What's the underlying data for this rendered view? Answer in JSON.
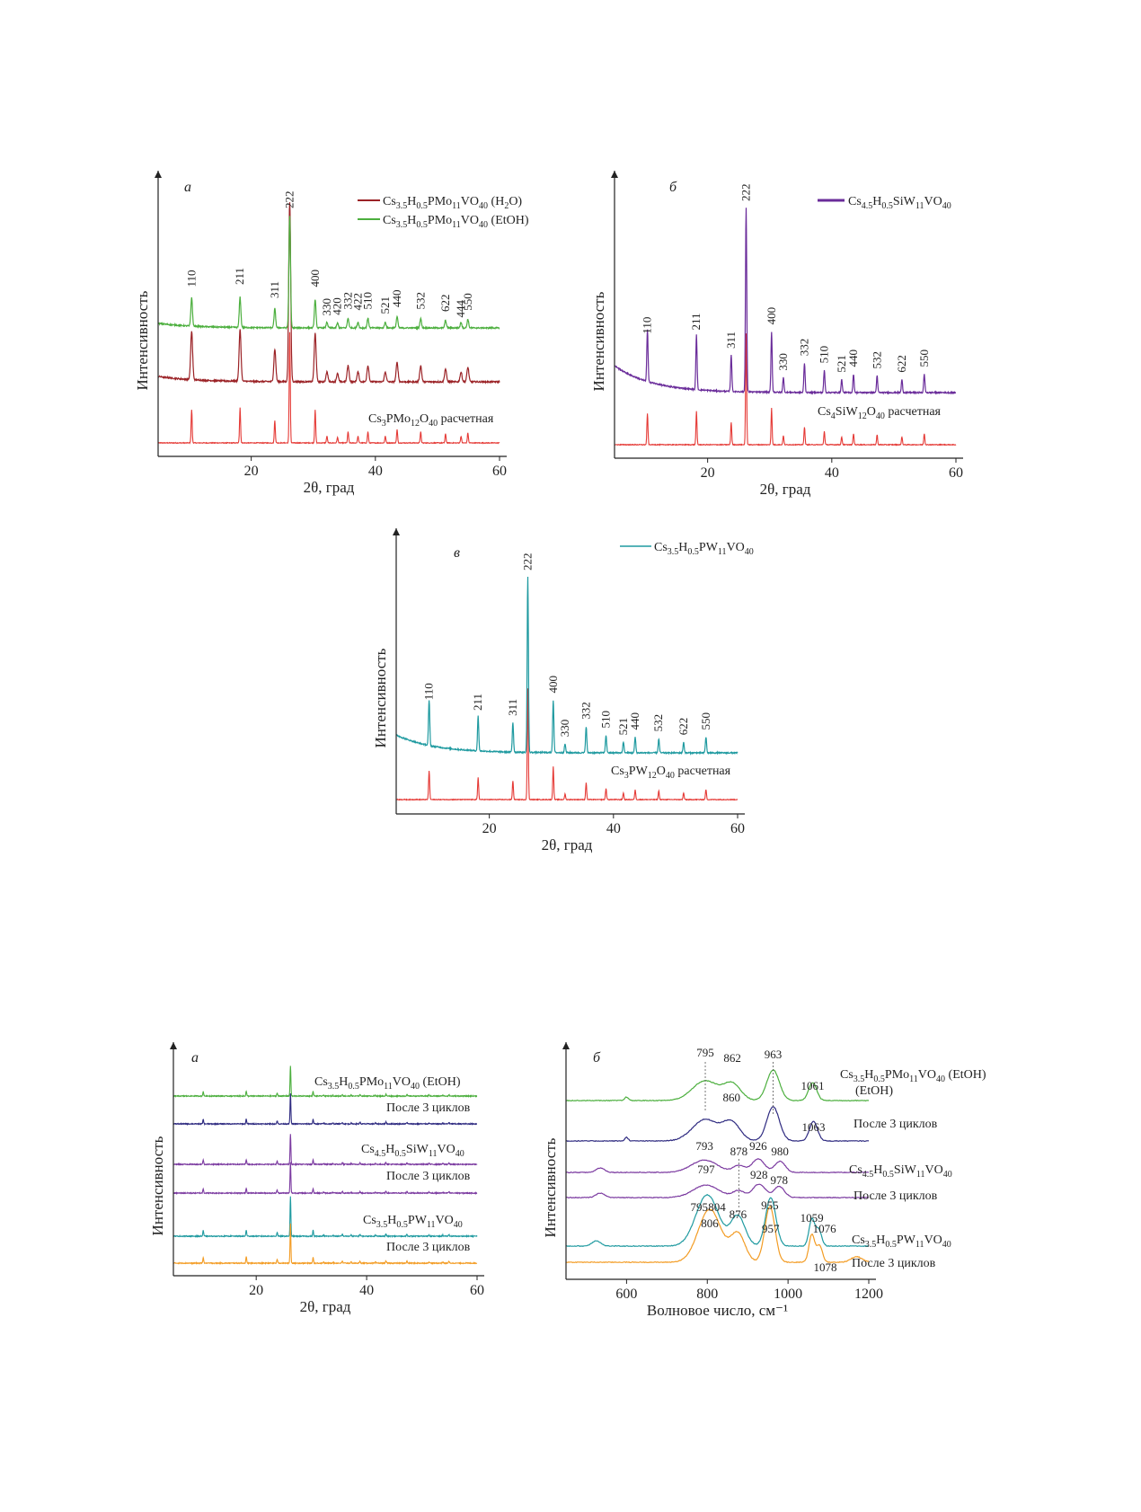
{
  "colors": {
    "green": "#4caf3e",
    "darkred": "#9b2226",
    "red": "#e53935",
    "purple": "#6a2c9a",
    "teal": "#1f9aa0",
    "navy": "#2e2a80",
    "violet": "#7b3aa0",
    "orange": "#f39c24",
    "axis": "#222222"
  },
  "chart_data": [
    {
      "id": "a_top",
      "type": "line",
      "panel_letter": "а",
      "ylabel": "Интенсивность",
      "xlabel": "2θ, град",
      "xlim": [
        5,
        60
      ],
      "xticks": [
        20,
        40,
        60
      ],
      "series": [
        {
          "name": "Cs3.5H0.5PMo11VO40 (H2O)",
          "color": "darkred"
        },
        {
          "name": "Cs3.5H0.5PMo11VO40 (EtOH)",
          "color": "green"
        }
      ],
      "reference": {
        "name": "Cs3PMo12O40 расчетная",
        "color": "red"
      },
      "peaks": [
        {
          "hkl": "110",
          "x": 10.4,
          "h": 0.3
        },
        {
          "hkl": "211",
          "x": 18.2,
          "h": 0.32
        },
        {
          "hkl": "311",
          "x": 23.8,
          "h": 0.2
        },
        {
          "hkl": "222",
          "x": 26.2,
          "h": 1.0
        },
        {
          "hkl": "400",
          "x": 30.3,
          "h": 0.3
        },
        {
          "hkl": "330",
          "x": 32.2,
          "h": 0.06
        },
        {
          "hkl": "420",
          "x": 33.9,
          "h": 0.05
        },
        {
          "hkl": "332",
          "x": 35.6,
          "h": 0.1
        },
        {
          "hkl": "422",
          "x": 37.2,
          "h": 0.06
        },
        {
          "hkl": "510",
          "x": 38.8,
          "h": 0.1
        },
        {
          "hkl": "521",
          "x": 41.6,
          "h": 0.06
        },
        {
          "hkl": "440",
          "x": 43.5,
          "h": 0.12
        },
        {
          "hkl": "532",
          "x": 47.3,
          "h": 0.1
        },
        {
          "hkl": "622",
          "x": 51.3,
          "h": 0.08
        },
        {
          "hkl": "444",
          "x": 53.8,
          "h": 0.06
        },
        {
          "hkl": "550",
          "x": 54.9,
          "h": 0.09
        }
      ]
    },
    {
      "id": "b_top",
      "type": "line",
      "panel_letter": "б",
      "ylabel": "Интенсивность",
      "xlabel": "2θ, град",
      "xlim": [
        5,
        60
      ],
      "xticks": [
        20,
        40,
        60
      ],
      "series": [
        {
          "name": "Cs4.5H0.5SiW11VO40",
          "color": "purple"
        }
      ],
      "reference": {
        "name": "Cs4SiW12O40 расчетная",
        "color": "red"
      },
      "peaks": [
        {
          "hkl": "110",
          "x": 10.3,
          "h": 0.28
        },
        {
          "hkl": "211",
          "x": 18.2,
          "h": 0.3
        },
        {
          "hkl": "311",
          "x": 23.8,
          "h": 0.2
        },
        {
          "hkl": "222",
          "x": 26.2,
          "h": 1.0
        },
        {
          "hkl": "400",
          "x": 30.3,
          "h": 0.33
        },
        {
          "hkl": "330",
          "x": 32.2,
          "h": 0.08
        },
        {
          "hkl": "332",
          "x": 35.6,
          "h": 0.16
        },
        {
          "hkl": "510",
          "x": 38.8,
          "h": 0.12
        },
        {
          "hkl": "521",
          "x": 41.6,
          "h": 0.07
        },
        {
          "hkl": "440",
          "x": 43.5,
          "h": 0.1
        },
        {
          "hkl": "532",
          "x": 47.3,
          "h": 0.09
        },
        {
          "hkl": "622",
          "x": 51.3,
          "h": 0.07
        },
        {
          "hkl": "550",
          "x": 54.9,
          "h": 0.1
        }
      ]
    },
    {
      "id": "v_top",
      "type": "line",
      "panel_letter": "в",
      "ylabel": "Интенсивность",
      "xlabel": "2θ, град",
      "xlim": [
        5,
        60
      ],
      "xticks": [
        20,
        40,
        60
      ],
      "series": [
        {
          "name": "Cs3.5H0.5PW11VO40",
          "color": "teal"
        }
      ],
      "reference": {
        "name": "Cs3PW12O40 расчетная",
        "color": "red"
      },
      "peaks": [
        {
          "hkl": "110",
          "x": 10.3,
          "h": 0.26
        },
        {
          "hkl": "211",
          "x": 18.2,
          "h": 0.2
        },
        {
          "hkl": "311",
          "x": 23.8,
          "h": 0.17
        },
        {
          "hkl": "222",
          "x": 26.2,
          "h": 1.0
        },
        {
          "hkl": "400",
          "x": 30.3,
          "h": 0.3
        },
        {
          "hkl": "330",
          "x": 32.2,
          "h": 0.05
        },
        {
          "hkl": "332",
          "x": 35.6,
          "h": 0.15
        },
        {
          "hkl": "510",
          "x": 38.8,
          "h": 0.1
        },
        {
          "hkl": "521",
          "x": 41.6,
          "h": 0.06
        },
        {
          "hkl": "440",
          "x": 43.5,
          "h": 0.09
        },
        {
          "hkl": "532",
          "x": 47.3,
          "h": 0.08
        },
        {
          "hkl": "622",
          "x": 51.3,
          "h": 0.06
        },
        {
          "hkl": "550",
          "x": 54.9,
          "h": 0.09
        }
      ]
    },
    {
      "id": "a_bottom",
      "type": "line",
      "panel_letter": "а",
      "ylabel": "Интенсивность",
      "xlabel": "2θ, град",
      "xlim": [
        5,
        60
      ],
      "xticks": [
        20,
        40,
        60
      ],
      "series": [
        {
          "name": "Cs3.5H0.5PMo11VO40 (EtOH)",
          "color": "green"
        },
        {
          "name": "После 3 циклов",
          "color": "navy"
        },
        {
          "name": "Cs4.5H0.5SiW11VO40",
          "color": "violet"
        },
        {
          "name": "После 3 циклов",
          "color": "violet"
        },
        {
          "name": "Cs3.5H0.5PW11VO40",
          "color": "teal"
        },
        {
          "name": "После 3 циклов",
          "color": "orange"
        }
      ]
    },
    {
      "id": "b_bottom",
      "type": "line",
      "panel_letter": "б",
      "ylabel": "Интенсивность",
      "xlabel": "Волновое число, см⁻¹",
      "xlim": [
        450,
        1200
      ],
      "xticks": [
        600,
        800,
        1000,
        1200
      ],
      "series": [
        {
          "name": "Cs3.5H0.5PMo11VO40 (EtOH)",
          "color": "green",
          "bands": [
            795,
            862,
            963,
            1061
          ]
        },
        {
          "name": "После 3 циклов",
          "color": "navy",
          "bands": [
            795,
            860,
            963,
            1063
          ]
        },
        {
          "name": "Cs4.5H0.5SiW11VO40",
          "color": "violet",
          "bands": [
            793,
            878,
            926,
            980
          ]
        },
        {
          "name": "После 3 циклов",
          "color": "violet",
          "bands": [
            797,
            878,
            928,
            978
          ]
        },
        {
          "name": "Cs3.5H0.5PW11VO40",
          "color": "teal",
          "bands": [
            795,
            804,
            876,
            957,
            1059,
            1076
          ]
        },
        {
          "name": "После 3 циклов",
          "color": "orange",
          "bands": [
            806,
            876,
            955,
            1059,
            1078
          ]
        }
      ],
      "band_labels": [
        "795",
        "862",
        "963",
        "1061",
        "860",
        "1063",
        "793",
        "878",
        "926",
        "980",
        "797",
        "928",
        "978",
        "795",
        "804",
        "806",
        "876",
        "957",
        "955",
        "1059",
        "1076",
        "1078"
      ]
    }
  ],
  "labels": {
    "a_top_leg1": "Cs3.5H0.5PMo11VO40 (H2O)",
    "a_top_leg2": "Cs3.5H0.5PMo11VO40 (EtOH)",
    "a_top_ref": "Cs3PMo12O40 расчетная",
    "b_top_leg1": "Cs4.5H0.5SiW11VO40",
    "b_top_ref": "Cs4SiW12O40 расчетная",
    "v_top_leg1": "Cs3.5H0.5PW11VO40",
    "v_top_ref": "Cs3PW12O40 расчетная",
    "after": "После 3 циклов",
    "etoh": "(EtOH)"
  }
}
